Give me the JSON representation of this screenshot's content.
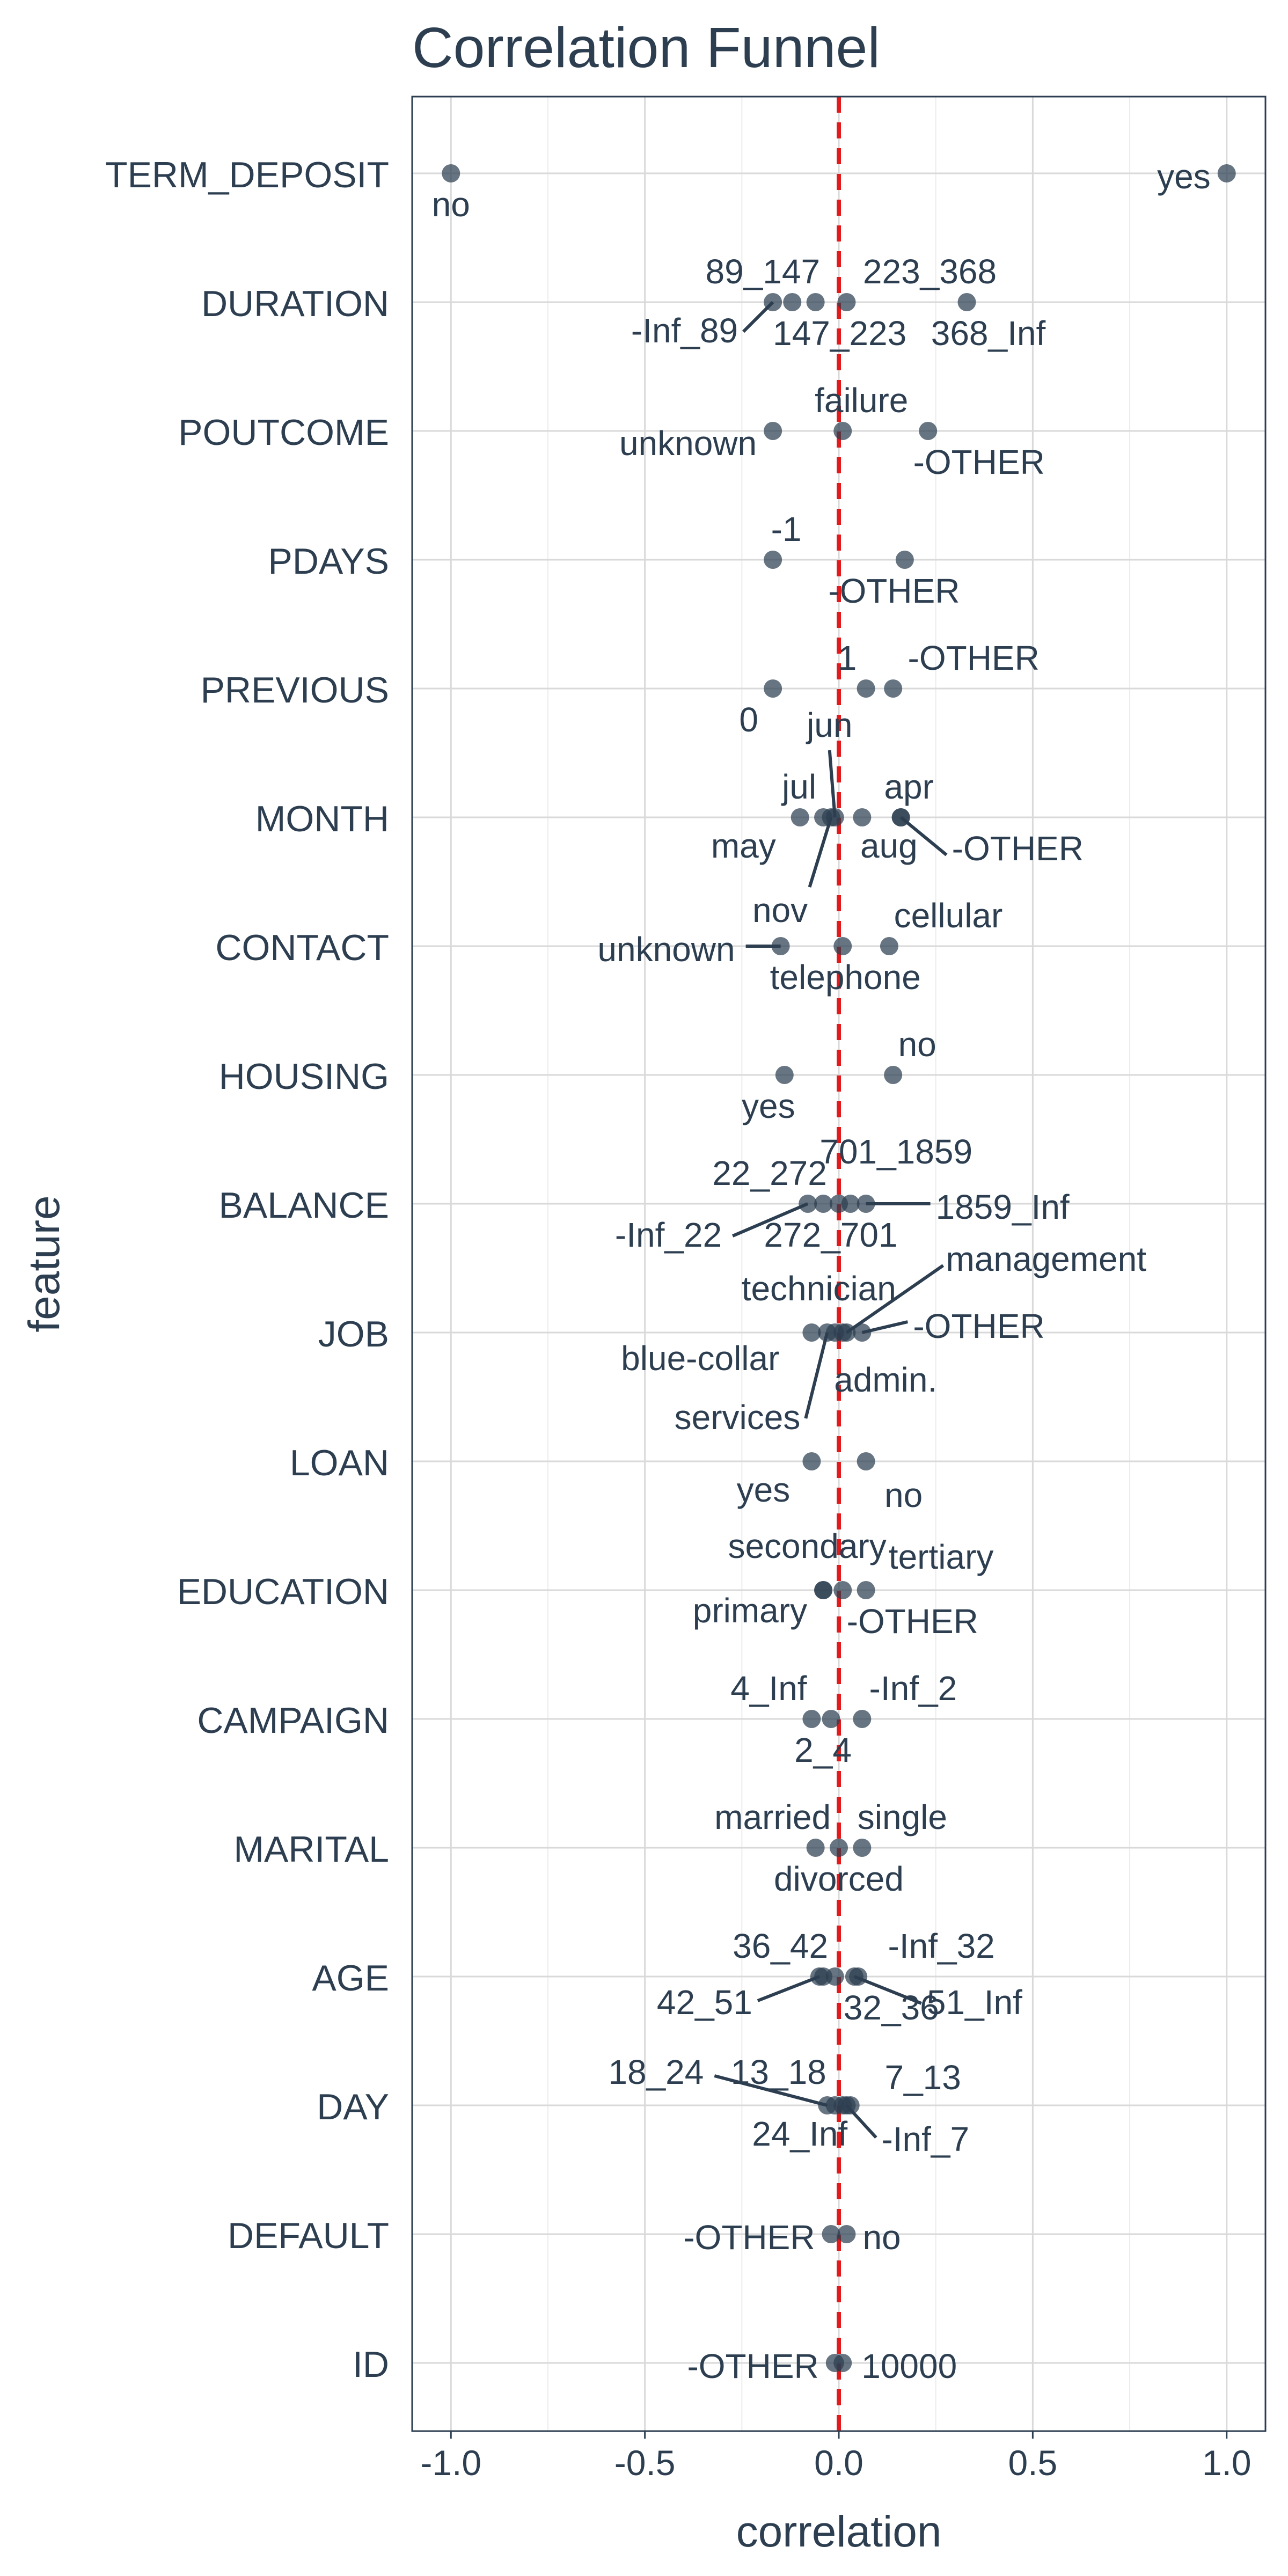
{
  "chart_data": {
    "type": "scatter",
    "title": "Correlation Funnel",
    "xlabel": "correlation",
    "ylabel": "feature",
    "xlim": [
      -1.1,
      1.1
    ],
    "x_ticks": [
      -1.0,
      -0.5,
      0.0,
      0.5,
      1.0
    ],
    "x_tick_labels": [
      "-1.0",
      "-0.5",
      "0.0",
      "0.5",
      "1.0"
    ],
    "grid": true,
    "reference_line": {
      "x": 0,
      "style": "dashed",
      "color": "#e31a1c"
    },
    "colors": {
      "text": "#2c3e50",
      "point": "#2c3e50",
      "grid": "#d9d9d9",
      "ref_line": "#e31a1c"
    },
    "features": [
      {
        "name": "TERM_DEPOSIT",
        "levels": [
          {
            "label": "no",
            "x": -1.0
          },
          {
            "label": "yes",
            "x": 1.0
          }
        ]
      },
      {
        "name": "DURATION",
        "levels": [
          {
            "label": "-Inf_89",
            "x": -0.17
          },
          {
            "label": "89_147",
            "x": -0.12
          },
          {
            "label": "147_223",
            "x": -0.06
          },
          {
            "label": "223_368",
            "x": 0.02
          },
          {
            "label": "368_Inf",
            "x": 0.33
          }
        ]
      },
      {
        "name": "POUTCOME",
        "levels": [
          {
            "label": "unknown",
            "x": -0.17
          },
          {
            "label": "failure",
            "x": 0.01
          },
          {
            "label": "-OTHER",
            "x": 0.23
          }
        ]
      },
      {
        "name": "PDAYS",
        "levels": [
          {
            "label": "-1",
            "x": -0.17
          },
          {
            "label": "-OTHER",
            "x": 0.17
          }
        ]
      },
      {
        "name": "PREVIOUS",
        "levels": [
          {
            "label": "0",
            "x": -0.17
          },
          {
            "label": "1",
            "x": 0.07
          },
          {
            "label": "-OTHER",
            "x": 0.14
          }
        ]
      },
      {
        "name": "MONTH",
        "levels": [
          {
            "label": "may",
            "x": -0.1
          },
          {
            "label": "jul",
            "x": -0.04
          },
          {
            "label": "jun",
            "x": -0.01
          },
          {
            "label": "nov",
            "x": -0.02
          },
          {
            "label": "aug",
            "x": 0.06
          },
          {
            "label": "apr",
            "x": 0.16
          },
          {
            "label": "-OTHER",
            "x": 0.16
          }
        ]
      },
      {
        "name": "CONTACT",
        "levels": [
          {
            "label": "unknown",
            "x": -0.15
          },
          {
            "label": "telephone",
            "x": 0.01
          },
          {
            "label": "cellular",
            "x": 0.13
          }
        ]
      },
      {
        "name": "HOUSING",
        "levels": [
          {
            "label": "yes",
            "x": -0.14
          },
          {
            "label": "no",
            "x": 0.14
          }
        ]
      },
      {
        "name": "BALANCE",
        "levels": [
          {
            "label": "-Inf_22",
            "x": -0.08
          },
          {
            "label": "22_272",
            "x": -0.04
          },
          {
            "label": "272_701",
            "x": 0.0
          },
          {
            "label": "701_1859",
            "x": 0.03
          },
          {
            "label": "1859_Inf",
            "x": 0.07
          }
        ]
      },
      {
        "name": "JOB",
        "levels": [
          {
            "label": "blue-collar",
            "x": -0.07
          },
          {
            "label": "services",
            "x": -0.03
          },
          {
            "label": "technician",
            "x": -0.01
          },
          {
            "label": "admin.",
            "x": 0.01
          },
          {
            "label": "management",
            "x": 0.02
          },
          {
            "label": "-OTHER",
            "x": 0.06
          }
        ]
      },
      {
        "name": "LOAN",
        "levels": [
          {
            "label": "yes",
            "x": -0.07
          },
          {
            "label": "no",
            "x": 0.07
          }
        ]
      },
      {
        "name": "EDUCATION",
        "levels": [
          {
            "label": "primary",
            "x": -0.04
          },
          {
            "label": "secondary",
            "x": -0.04
          },
          {
            "label": "-OTHER",
            "x": 0.01
          },
          {
            "label": "tertiary",
            "x": 0.07
          }
        ]
      },
      {
        "name": "CAMPAIGN",
        "levels": [
          {
            "label": "4_Inf",
            "x": -0.07
          },
          {
            "label": "2_4",
            "x": -0.02
          },
          {
            "label": "-Inf_2",
            "x": 0.06
          }
        ]
      },
      {
        "name": "MARITAL",
        "levels": [
          {
            "label": "married",
            "x": -0.06
          },
          {
            "label": "divorced",
            "x": 0.0
          },
          {
            "label": "single",
            "x": 0.06
          }
        ]
      },
      {
        "name": "AGE",
        "levels": [
          {
            "label": "42_51",
            "x": -0.05
          },
          {
            "label": "36_42",
            "x": -0.04
          },
          {
            "label": "32_36",
            "x": -0.01
          },
          {
            "label": "51_Inf",
            "x": 0.04
          },
          {
            "label": "-Inf_32",
            "x": 0.05
          }
        ]
      },
      {
        "name": "DAY",
        "levels": [
          {
            "label": "18_24",
            "x": -0.03
          },
          {
            "label": "13_18",
            "x": -0.01
          },
          {
            "label": "24_Inf",
            "x": 0.01
          },
          {
            "label": "-Inf_7",
            "x": 0.02
          },
          {
            "label": "7_13",
            "x": 0.03
          }
        ]
      },
      {
        "name": "DEFAULT",
        "levels": [
          {
            "label": "-OTHER",
            "x": -0.02
          },
          {
            "label": "no",
            "x": 0.02
          }
        ]
      },
      {
        "name": "ID",
        "levels": [
          {
            "label": "-OTHER",
            "x": -0.01
          },
          {
            "label": "10000",
            "x": 0.01
          }
        ]
      }
    ]
  }
}
